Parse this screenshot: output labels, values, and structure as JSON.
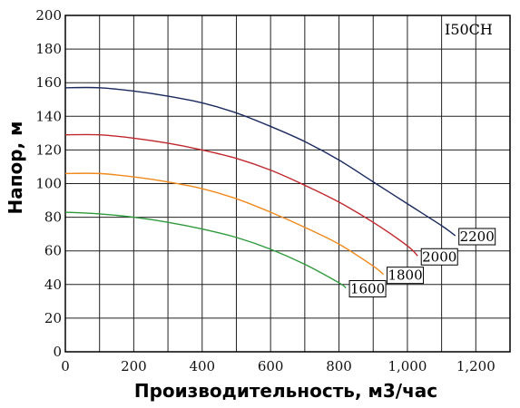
{
  "chart_data": {
    "type": "line",
    "title": "",
    "model_label": "I50CH",
    "xlabel": "Производительность, м3/час",
    "ylabel": "Напор, м",
    "xlim": [
      0,
      1300
    ],
    "ylim": [
      0,
      200
    ],
    "x_ticks": [
      0,
      200,
      400,
      600,
      800,
      1000,
      1200
    ],
    "x_tick_labels": [
      "0",
      "200",
      "400",
      "600",
      "800",
      "1,000",
      "1,200"
    ],
    "y_ticks": [
      0,
      20,
      40,
      60,
      80,
      100,
      120,
      140,
      160,
      180,
      200
    ],
    "y_tick_labels": [
      "0",
      "20",
      "40",
      "60",
      "80",
      "100",
      "120",
      "140",
      "160",
      "180",
      "200"
    ],
    "x_grid_step": 100,
    "y_grid_step": 20,
    "grid": true,
    "series": [
      {
        "name": "2200",
        "color": "#1a2a5e",
        "x": [
          0,
          100,
          200,
          300,
          400,
          500,
          600,
          700,
          800,
          900,
          1000,
          1100,
          1140
        ],
        "y": [
          157,
          157,
          155,
          152,
          148,
          142,
          134,
          125,
          114,
          101,
          88,
          75,
          69
        ]
      },
      {
        "name": "2000",
        "color": "#c0282d",
        "x": [
          0,
          100,
          200,
          300,
          400,
          500,
          600,
          700,
          800,
          900,
          1000,
          1030
        ],
        "y": [
          129,
          129,
          127,
          124,
          120,
          115,
          108,
          99,
          89,
          77,
          63,
          57
        ]
      },
      {
        "name": "1800",
        "color": "#f08a1c",
        "x": [
          0,
          100,
          200,
          300,
          400,
          500,
          600,
          700,
          800,
          900,
          930
        ],
        "y": [
          106,
          106,
          104,
          101,
          97,
          91,
          83,
          74,
          64,
          51,
          46
        ]
      },
      {
        "name": "1600",
        "color": "#2e9a3c",
        "x": [
          0,
          100,
          200,
          300,
          400,
          500,
          600,
          700,
          800,
          820
        ],
        "y": [
          83,
          82,
          80,
          77,
          73,
          68,
          61,
          52,
          41,
          38
        ]
      }
    ]
  }
}
